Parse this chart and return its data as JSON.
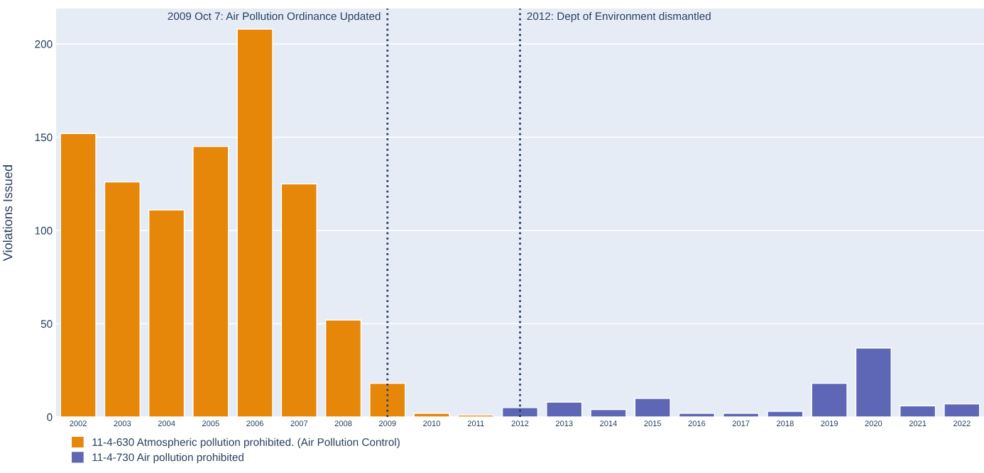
{
  "chart_data": {
    "type": "bar",
    "ylabel": "Violations Issued",
    "categories": [
      "2002",
      "2003",
      "2004",
      "2005",
      "2006",
      "2007",
      "2008",
      "2009",
      "2010",
      "2011",
      "2012",
      "2013",
      "2014",
      "2015",
      "2016",
      "2017",
      "2018",
      "2019",
      "2020",
      "2021",
      "2022"
    ],
    "series": [
      {
        "name": "11-4-630 Atmospheric pollution prohibited. (Air Pollution Control)",
        "color": "#e6870a",
        "values": [
          152,
          126,
          111,
          145,
          208,
          125,
          52,
          18,
          2,
          1,
          null,
          null,
          null,
          null,
          null,
          null,
          null,
          null,
          null,
          null,
          null
        ]
      },
      {
        "name": "11-4-730 Air pollution prohibited",
        "color": "#5d67b5",
        "values": [
          null,
          null,
          null,
          null,
          null,
          null,
          null,
          null,
          null,
          null,
          5,
          8,
          4,
          10,
          2,
          2,
          3,
          18,
          37,
          6,
          7
        ]
      }
    ],
    "ylim": [
      0,
      219
    ],
    "yticks": [
      0,
      50,
      100,
      150,
      200
    ],
    "grid": "y",
    "legend": "bottom left",
    "ref_lines": [
      {
        "axis": "x",
        "value": "2009",
        "label": "2009 Oct 7: Air Pollution Ordinance Updated",
        "color": "#2a3f5f",
        "line_style": "dotted"
      },
      {
        "axis": "x",
        "value": "2012",
        "label": "2012: Dept of Environment dismantled",
        "color": "#2a3f5f",
        "line_style": "dotted"
      }
    ]
  }
}
